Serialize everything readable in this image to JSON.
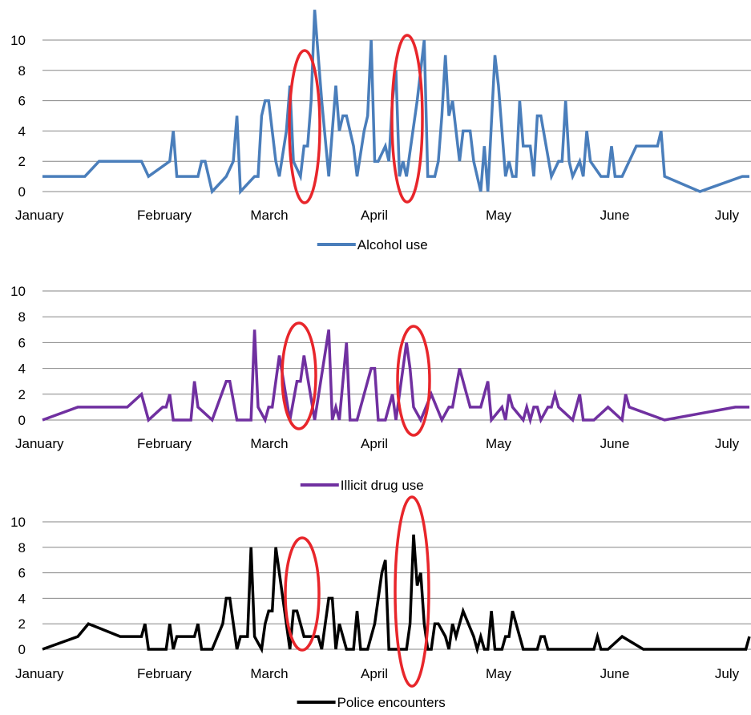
{
  "chart_data": [
    {
      "type": "line",
      "months": [
        "January",
        "February",
        "March",
        "April",
        "May",
        "June",
        "July"
      ],
      "ylim": [
        0,
        10
      ],
      "yticks": [
        0,
        2,
        4,
        6,
        8,
        10
      ],
      "grid": true,
      "legend": "bottom",
      "color": "#4a7ebb",
      "series": [
        {
          "name": "Alcohol use",
          "points": [
            [
              0,
              1
            ],
            [
              6,
              1
            ],
            [
              8,
              2
            ],
            [
              14,
              2
            ],
            [
              15,
              1
            ],
            [
              18,
              2
            ],
            [
              18.5,
              4
            ],
            [
              19,
              1
            ],
            [
              22,
              1
            ],
            [
              22.5,
              2
            ],
            [
              23,
              2
            ],
            [
              24,
              0
            ],
            [
              26,
              1
            ],
            [
              27,
              2
            ],
            [
              27.5,
              5
            ],
            [
              28,
              0
            ],
            [
              30,
              1
            ],
            [
              30.5,
              1
            ],
            [
              31,
              5
            ],
            [
              31.5,
              6
            ],
            [
              32,
              6
            ],
            [
              33,
              2
            ],
            [
              33.5,
              1
            ],
            [
              34.5,
              4
            ],
            [
              35,
              7
            ],
            [
              35.5,
              2
            ],
            [
              36.5,
              1
            ],
            [
              37,
              3
            ],
            [
              37.5,
              3
            ],
            [
              38,
              6
            ],
            [
              38.5,
              12
            ],
            [
              39.5,
              6
            ],
            [
              40.5,
              1
            ],
            [
              41,
              4
            ],
            [
              41.5,
              7
            ],
            [
              42,
              4
            ],
            [
              42.5,
              5
            ],
            [
              43,
              5
            ],
            [
              44,
              3
            ],
            [
              44.5,
              1
            ],
            [
              45.5,
              4
            ],
            [
              46,
              5
            ],
            [
              46.5,
              10
            ],
            [
              47,
              2
            ],
            [
              47.5,
              2
            ],
            [
              48.5,
              3
            ],
            [
              49,
              2
            ],
            [
              49.5,
              6
            ],
            [
              50,
              8
            ],
            [
              50.5,
              1
            ],
            [
              51,
              2
            ],
            [
              51.5,
              1
            ],
            [
              53,
              6
            ],
            [
              54,
              10
            ],
            [
              54.5,
              1
            ],
            [
              55.5,
              1
            ],
            [
              56,
              2
            ],
            [
              56.5,
              5
            ],
            [
              57,
              9
            ],
            [
              57.5,
              5
            ],
            [
              58,
              6
            ],
            [
              59,
              2
            ],
            [
              59.5,
              4
            ],
            [
              60.5,
              4
            ],
            [
              61,
              2
            ],
            [
              62,
              0
            ],
            [
              62.5,
              3
            ],
            [
              63,
              0
            ],
            [
              64,
              9
            ],
            [
              64.5,
              7
            ],
            [
              65.5,
              1
            ],
            [
              66,
              2
            ],
            [
              66.5,
              1
            ],
            [
              67,
              1
            ],
            [
              67.5,
              6
            ],
            [
              68,
              3
            ],
            [
              69,
              3
            ],
            [
              69.5,
              1
            ],
            [
              70,
              5
            ],
            [
              70.5,
              5
            ],
            [
              72,
              1
            ],
            [
              73,
              2
            ],
            [
              73.5,
              2
            ],
            [
              74,
              6
            ],
            [
              74.5,
              2
            ],
            [
              75,
              1
            ],
            [
              76,
              2
            ],
            [
              76.5,
              1
            ],
            [
              77,
              4
            ],
            [
              77.5,
              2
            ],
            [
              79,
              1
            ],
            [
              80,
              1
            ],
            [
              80.5,
              3
            ],
            [
              81,
              1
            ],
            [
              82,
              1
            ],
            [
              84,
              3
            ],
            [
              87,
              3
            ],
            [
              87.5,
              4
            ],
            [
              88,
              1
            ],
            [
              93,
              0
            ],
            [
              99,
              1
            ],
            [
              100,
              1
            ]
          ]
        }
      ]
    },
    {
      "type": "line",
      "months": [
        "January",
        "February",
        "March",
        "April",
        "May",
        "June",
        "July"
      ],
      "ylim": [
        0,
        10
      ],
      "yticks": [
        0,
        2,
        4,
        6,
        8,
        10
      ],
      "grid": true,
      "legend": "bottom",
      "color": "#7030a0",
      "series": [
        {
          "name": "Illicit drug use",
          "points": [
            [
              0,
              0
            ],
            [
              5,
              1
            ],
            [
              12,
              1
            ],
            [
              14,
              2
            ],
            [
              15,
              0
            ],
            [
              17,
              1
            ],
            [
              17.5,
              1
            ],
            [
              18,
              2
            ],
            [
              18.5,
              0
            ],
            [
              21,
              0
            ],
            [
              21.5,
              3
            ],
            [
              22,
              1
            ],
            [
              24,
              0
            ],
            [
              26,
              3
            ],
            [
              26.5,
              3
            ],
            [
              27.5,
              0
            ],
            [
              29.5,
              0
            ],
            [
              30,
              7
            ],
            [
              30.5,
              1
            ],
            [
              31.5,
              0
            ],
            [
              32,
              1
            ],
            [
              32.5,
              1
            ],
            [
              33.5,
              5
            ],
            [
              35,
              0
            ],
            [
              36,
              3
            ],
            [
              36.5,
              3
            ],
            [
              37,
              5
            ],
            [
              38.5,
              0
            ],
            [
              40.5,
              7
            ],
            [
              41,
              0
            ],
            [
              41.5,
              1
            ],
            [
              42,
              0
            ],
            [
              43,
              6
            ],
            [
              43.5,
              0
            ],
            [
              44.5,
              0
            ],
            [
              46.5,
              4
            ],
            [
              47,
              4
            ],
            [
              47.5,
              0
            ],
            [
              48.5,
              0
            ],
            [
              49.5,
              2
            ],
            [
              50,
              0
            ],
            [
              51.5,
              6
            ],
            [
              52,
              4
            ],
            [
              52.5,
              1
            ],
            [
              53.5,
              0
            ],
            [
              55,
              2
            ],
            [
              56.5,
              0
            ],
            [
              57.5,
              1
            ],
            [
              58,
              1
            ],
            [
              59,
              4
            ],
            [
              60.5,
              1
            ],
            [
              62,
              1
            ],
            [
              63,
              3
            ],
            [
              63.5,
              0
            ],
            [
              65,
              1
            ],
            [
              65.5,
              0
            ],
            [
              66,
              2
            ],
            [
              66.5,
              1
            ],
            [
              68,
              0
            ],
            [
              68.5,
              1
            ],
            [
              69,
              0
            ],
            [
              69.5,
              1
            ],
            [
              70,
              1
            ],
            [
              70.5,
              0
            ],
            [
              71.5,
              1
            ],
            [
              72,
              1
            ],
            [
              72.5,
              2
            ],
            [
              73,
              1
            ],
            [
              75,
              0
            ],
            [
              76,
              2
            ],
            [
              76.5,
              0
            ],
            [
              78,
              0
            ],
            [
              80,
              1
            ],
            [
              82,
              0
            ],
            [
              82.5,
              2
            ],
            [
              83,
              1
            ],
            [
              88,
              0
            ],
            [
              98,
              1
            ],
            [
              100,
              1
            ]
          ]
        }
      ]
    },
    {
      "type": "line",
      "months": [
        "January",
        "February",
        "March",
        "April",
        "May",
        "June",
        "July"
      ],
      "ylim": [
        0,
        10
      ],
      "yticks": [
        0,
        2,
        4,
        6,
        8,
        10
      ],
      "grid": true,
      "legend": "bottom",
      "color": "#000000",
      "series": [
        {
          "name": "Police encounters",
          "points": [
            [
              0,
              0
            ],
            [
              5,
              1
            ],
            [
              6.5,
              2
            ],
            [
              11,
              1
            ],
            [
              14,
              1
            ],
            [
              14.5,
              2
            ],
            [
              15,
              0
            ],
            [
              17.5,
              0
            ],
            [
              18,
              2
            ],
            [
              18.5,
              0
            ],
            [
              19,
              1
            ],
            [
              21.5,
              1
            ],
            [
              22,
              2
            ],
            [
              22.5,
              0
            ],
            [
              24,
              0
            ],
            [
              25.5,
              2
            ],
            [
              26,
              4
            ],
            [
              26.5,
              4
            ],
            [
              27.5,
              0
            ],
            [
              28,
              1
            ],
            [
              29,
              1
            ],
            [
              29.5,
              8
            ],
            [
              30,
              1
            ],
            [
              31,
              0
            ],
            [
              31.5,
              2
            ],
            [
              32,
              3
            ],
            [
              32.5,
              3
            ],
            [
              33,
              8
            ],
            [
              35,
              0
            ],
            [
              35.5,
              3
            ],
            [
              36,
              3
            ],
            [
              37,
              1
            ],
            [
              39,
              1
            ],
            [
              39.5,
              0
            ],
            [
              40.5,
              4
            ],
            [
              41,
              4
            ],
            [
              41.5,
              0
            ],
            [
              42,
              2
            ],
            [
              43,
              0
            ],
            [
              44,
              0
            ],
            [
              44.5,
              3
            ],
            [
              45,
              0
            ],
            [
              46,
              0
            ],
            [
              47,
              2
            ],
            [
              48,
              6
            ],
            [
              48.5,
              7
            ],
            [
              49,
              0
            ],
            [
              51.5,
              0
            ],
            [
              52,
              2
            ],
            [
              52.5,
              9
            ],
            [
              53,
              5
            ],
            [
              53.5,
              6
            ],
            [
              54,
              2
            ],
            [
              54.5,
              0
            ],
            [
              55,
              0
            ],
            [
              55.5,
              2
            ],
            [
              56,
              2
            ],
            [
              57,
              1
            ],
            [
              57.5,
              0
            ],
            [
              58,
              2
            ],
            [
              58.5,
              1
            ],
            [
              59.5,
              3
            ],
            [
              61,
              1
            ],
            [
              61.5,
              0
            ],
            [
              62,
              1
            ],
            [
              62.5,
              0
            ],
            [
              63,
              0
            ],
            [
              63.5,
              3
            ],
            [
              64,
              0
            ],
            [
              65,
              0
            ],
            [
              65.5,
              1
            ],
            [
              66,
              1
            ],
            [
              66.5,
              3
            ],
            [
              68,
              0
            ],
            [
              70,
              0
            ],
            [
              70.5,
              1
            ],
            [
              71,
              1
            ],
            [
              71.5,
              0
            ],
            [
              78,
              0
            ],
            [
              78.5,
              1
            ],
            [
              79,
              0
            ],
            [
              80,
              0
            ],
            [
              82,
              1
            ],
            [
              85,
              0
            ],
            [
              99.5,
              0
            ],
            [
              100,
              1
            ]
          ]
        }
      ]
    }
  ]
}
